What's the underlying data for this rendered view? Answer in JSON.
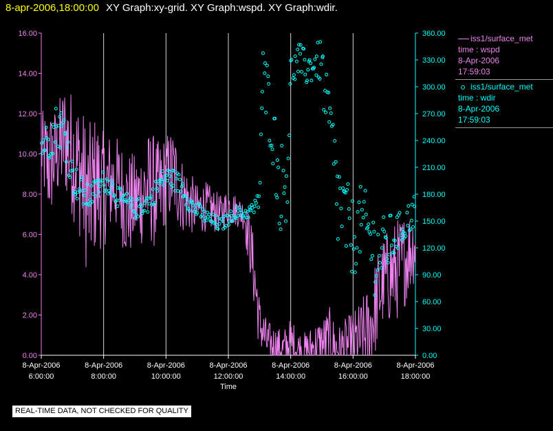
{
  "header": {
    "timestamp": "8-apr-2006,18:00:00",
    "titles": "XY Graph:xy-grid.  XY Graph:wspd.  XY Graph:wdir."
  },
  "disclaimer": "REAL-TIME DATA, NOT CHECKED FOR QUALITY",
  "legend": [
    {
      "lines": [
        "iss1/surface_met",
        "time : wspd",
        "8-Apr-2006",
        "17:59:03"
      ],
      "style": "line",
      "color": "#ee82ee"
    },
    {
      "lines": [
        "iss1/surface_met",
        "time : wdir",
        "8-Apr-2006",
        "17:59:03"
      ],
      "style": "dot",
      "color": "#00ffff"
    }
  ],
  "colors": {
    "wspd": "#ee82ee",
    "wdir": "#00ffff",
    "axis_text_x": "#ffffff",
    "background": "#000000",
    "grid": "#ffffff"
  },
  "chart_data": {
    "type": "line",
    "xlabel": "Time",
    "x_tick_labels": [
      [
        "8-Apr-2006",
        "6:00:00"
      ],
      [
        "8-Apr-2006",
        "8:00:00"
      ],
      [
        "8-Apr-2006",
        "10:00:00"
      ],
      [
        "8-Apr-2006",
        "12:00:00"
      ],
      [
        "8-Apr-2006",
        "14:00:00"
      ],
      [
        "8-Apr-2006",
        "16:00:00"
      ],
      [
        "8-Apr-2006",
        "18:00:00"
      ]
    ],
    "x_tick_hours": [
      6,
      8,
      10,
      12,
      14,
      16,
      18
    ],
    "xlim_hours": [
      6,
      18
    ],
    "grid_vertical_hours": [
      8,
      10,
      12,
      14,
      16
    ],
    "y_left": {
      "ylim": [
        0,
        16
      ],
      "ticks": [
        "0.00",
        "2.00",
        "4.00",
        "6.00",
        "8.00",
        "10.00",
        "12.00",
        "14.00",
        "16.00"
      ]
    },
    "y_right": {
      "ylim": [
        0,
        360
      ],
      "ticks": [
        "0.00",
        "30.00",
        "60.00",
        "90.00",
        "120.00",
        "150.00",
        "180.00",
        "210.00",
        "240.00",
        "270.00",
        "300.00",
        "330.00",
        "360.00"
      ]
    },
    "series": [
      {
        "name": "iss1/surface_met time : wspd",
        "style": "line",
        "axis": "left",
        "x_hours": [
          6.0,
          6.25,
          6.5,
          6.75,
          7.0,
          7.25,
          7.5,
          7.75,
          8.0,
          8.25,
          8.5,
          8.75,
          9.0,
          9.25,
          9.5,
          9.75,
          10.0,
          10.25,
          10.5,
          10.75,
          11.0,
          11.25,
          11.5,
          11.75,
          12.0,
          12.25,
          12.5,
          12.6,
          12.75,
          12.9,
          13.0,
          13.25,
          13.5,
          13.75,
          14.0,
          14.25,
          14.5,
          14.75,
          15.0,
          15.25,
          15.5,
          15.75,
          16.0,
          16.25,
          16.5,
          16.75,
          17.0,
          17.25,
          17.5,
          17.75,
          18.0
        ],
        "values": [
          10.2,
          9.4,
          10.0,
          10.8,
          10.0,
          9.2,
          7.6,
          8.6,
          8.2,
          8.6,
          8.4,
          7.4,
          7.6,
          8.0,
          8.4,
          7.8,
          8.8,
          9.0,
          8.0,
          7.6,
          7.2,
          7.4,
          7.2,
          7.0,
          7.4,
          7.2,
          7.0,
          6.2,
          5.0,
          3.0,
          1.6,
          0.6,
          0.4,
          0.3,
          0.6,
          0.3,
          0.2,
          0.4,
          0.5,
          0.8,
          0.3,
          0.4,
          0.6,
          0.8,
          1.0,
          2.6,
          3.8,
          4.0,
          4.4,
          5.0,
          5.6
        ],
        "spread": [
          1.2,
          1.8,
          1.5,
          1.8,
          2.0,
          2.2,
          2.4,
          2.2,
          1.8,
          1.6,
          1.5,
          1.8,
          1.5,
          1.6,
          1.8,
          1.8,
          1.4,
          1.5,
          1.2,
          1.0,
          0.8,
          0.8,
          0.7,
          0.6,
          0.6,
          0.5,
          0.5,
          0.8,
          1.0,
          1.2,
          0.8,
          0.7,
          0.7,
          0.6,
          0.8,
          0.6,
          0.6,
          0.8,
          0.9,
          1.0,
          0.7,
          0.9,
          1.0,
          1.2,
          1.6,
          1.5,
          1.4,
          1.6,
          1.6,
          1.4,
          1.2
        ]
      },
      {
        "name": "iss1/surface_met time : wdir",
        "style": "scatter",
        "axis": "right",
        "x_hours": [
          6.0,
          6.25,
          6.5,
          6.75,
          7.0,
          7.25,
          7.5,
          7.75,
          8.0,
          8.25,
          8.5,
          8.75,
          9.0,
          9.25,
          9.5,
          9.75,
          10.0,
          10.25,
          10.5,
          10.75,
          11.0,
          11.25,
          11.5,
          11.75,
          12.0,
          12.25,
          12.5,
          12.75,
          12.9,
          13.0,
          13.1,
          13.25,
          13.4,
          13.5,
          13.6,
          13.75,
          13.9,
          14.0,
          14.25,
          14.5,
          14.75,
          15.0,
          15.1,
          15.25,
          15.5,
          15.75,
          16.0,
          16.25,
          16.5,
          16.75,
          17.0,
          17.25,
          17.5,
          17.75,
          18.0
        ],
        "values": [
          235,
          240,
          258,
          250,
          200,
          185,
          175,
          185,
          195,
          190,
          175,
          170,
          162,
          168,
          172,
          190,
          200,
          196,
          190,
          170,
          162,
          155,
          150,
          145,
          152,
          160,
          158,
          162,
          166,
          180,
          310,
          290,
          260,
          230,
          195,
          185,
          210,
          315,
          330,
          320,
          325,
          330,
          280,
          260,
          175,
          150,
          130,
          150,
          135,
          110,
          120,
          130,
          140,
          150,
          165
        ],
        "spread": [
          20,
          22,
          25,
          25,
          20,
          18,
          15,
          12,
          12,
          12,
          12,
          12,
          10,
          12,
          12,
          12,
          12,
          12,
          12,
          10,
          10,
          8,
          8,
          8,
          7,
          7,
          7,
          8,
          10,
          18,
          40,
          40,
          40,
          40,
          50,
          55,
          50,
          20,
          20,
          20,
          20,
          25,
          40,
          40,
          60,
          50,
          45,
          40,
          45,
          50,
          35,
          30,
          20,
          20,
          18
        ]
      }
    ]
  }
}
